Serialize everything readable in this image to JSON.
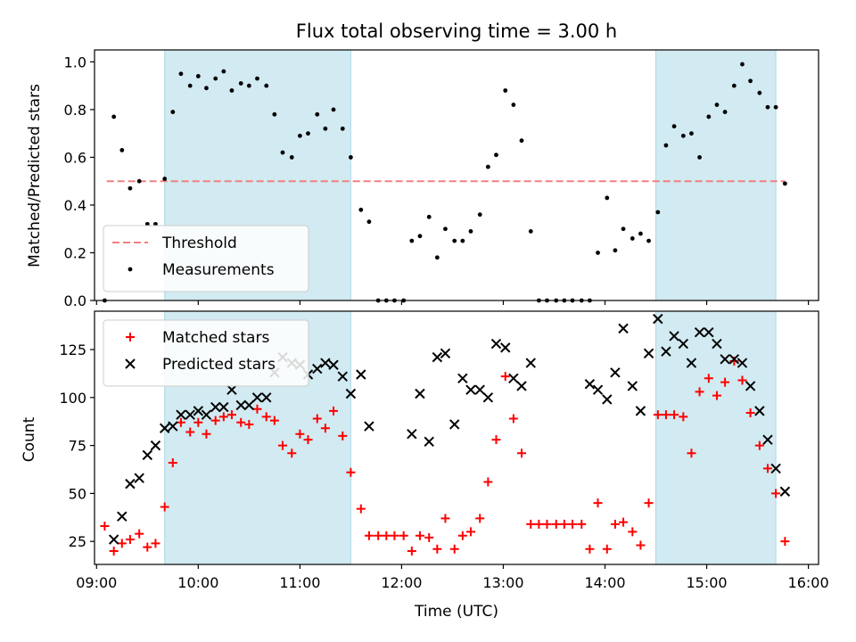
{
  "chart_data": {
    "title": "Flux total observing time = 3.00 h",
    "xlabel": "Time (UTC)",
    "xticks": [
      "09:00",
      "10:00",
      "11:00",
      "12:00",
      "13:00",
      "14:00",
      "15:00",
      "16:00"
    ],
    "xlim": [
      8.98,
      16.1
    ],
    "shaded_intervals": [
      [
        9.67,
        11.5
      ],
      [
        14.5,
        15.68
      ]
    ],
    "shade_color": "#add8e6",
    "panels": [
      {
        "type": "scatter",
        "ylabel": "Matched/Predicted stars",
        "ylim": [
          0,
          1.05
        ],
        "yticks": [
          "0.0",
          "0.2",
          "0.4",
          "0.6",
          "0.8",
          "1.0"
        ],
        "yticks_values": [
          0,
          0.2,
          0.4,
          0.6,
          0.8,
          1.0
        ],
        "legend": "lower-left",
        "threshold": {
          "name": "Threshold",
          "y": 0.5,
          "x_range": [
            9.1,
            15.77
          ],
          "color": "#f08080",
          "style": "dashed"
        },
        "series": [
          {
            "name": "Measurements",
            "marker": "dot",
            "color": "#000000",
            "x": [
              9.08,
              9.17,
              9.25,
              9.33,
              9.42,
              9.5,
              9.58,
              9.67,
              9.75,
              9.83,
              9.92,
              10.0,
              10.08,
              10.17,
              10.25,
              10.33,
              10.42,
              10.5,
              10.58,
              10.67,
              10.75,
              10.83,
              10.92,
              11.0,
              11.08,
              11.17,
              11.25,
              11.33,
              11.42,
              11.5,
              11.6,
              11.68,
              11.77,
              11.85,
              11.93,
              12.02,
              12.1,
              12.18,
              12.27,
              12.35,
              12.43,
              12.52,
              12.6,
              12.68,
              12.77,
              12.85,
              12.93,
              13.02,
              13.1,
              13.18,
              13.27,
              13.35,
              13.43,
              13.52,
              13.6,
              13.68,
              13.77,
              13.85,
              13.93,
              14.02,
              14.1,
              14.18,
              14.27,
              14.35,
              14.43,
              14.52,
              14.6,
              14.68,
              14.77,
              14.85,
              14.93,
              15.02,
              15.1,
              15.18,
              15.27,
              15.35,
              15.43,
              15.52,
              15.6,
              15.68,
              15.77
            ],
            "y": [
              0.0,
              0.77,
              0.63,
              0.47,
              0.5,
              0.32,
              0.32,
              0.51,
              0.79,
              0.95,
              0.9,
              0.94,
              0.89,
              0.93,
              0.96,
              0.88,
              0.91,
              0.9,
              0.93,
              0.9,
              0.78,
              0.62,
              0.6,
              0.69,
              0.7,
              0.78,
              0.72,
              0.8,
              0.72,
              0.6,
              0.38,
              0.33,
              0.0,
              0.0,
              0.0,
              0.0,
              0.25,
              0.27,
              0.35,
              0.18,
              0.3,
              0.25,
              0.25,
              0.29,
              0.36,
              0.56,
              0.61,
              0.88,
              0.82,
              0.67,
              0.29,
              0.0,
              0.0,
              0.0,
              0.0,
              0.0,
              0.0,
              0.0,
              0.2,
              0.43,
              0.21,
              0.3,
              0.26,
              0.28,
              0.25,
              0.37,
              0.65,
              0.73,
              0.69,
              0.7,
              0.6,
              0.77,
              0.82,
              0.79,
              0.9,
              0.99,
              0.92,
              0.87,
              0.81,
              0.81,
              0.49
            ]
          }
        ]
      },
      {
        "type": "scatter",
        "ylabel": "Count",
        "ylim": [
          13,
          145
        ],
        "yticks": [
          "25",
          "50",
          "75",
          "100",
          "125"
        ],
        "yticks_values": [
          25,
          50,
          75,
          100,
          125
        ],
        "legend": "upper-left",
        "series": [
          {
            "name": "Matched stars",
            "marker": "plus",
            "color": "#ff0000",
            "x": [
              9.08,
              9.17,
              9.25,
              9.33,
              9.42,
              9.5,
              9.58,
              9.67,
              9.75,
              9.83,
              9.92,
              10.0,
              10.08,
              10.17,
              10.25,
              10.33,
              10.42,
              10.5,
              10.58,
              10.67,
              10.75,
              10.83,
              10.92,
              11.0,
              11.08,
              11.17,
              11.25,
              11.33,
              11.42,
              11.5,
              11.6,
              11.68,
              11.77,
              11.85,
              11.93,
              12.02,
              12.1,
              12.18,
              12.27,
              12.35,
              12.43,
              12.52,
              12.6,
              12.68,
              12.77,
              12.85,
              12.93,
              13.02,
              13.1,
              13.18,
              13.27,
              13.35,
              13.43,
              13.52,
              13.6,
              13.68,
              13.77,
              13.85,
              13.93,
              14.02,
              14.1,
              14.18,
              14.27,
              14.35,
              14.43,
              14.52,
              14.6,
              14.68,
              14.77,
              14.85,
              14.93,
              15.02,
              15.1,
              15.18,
              15.27,
              15.35,
              15.43,
              15.52,
              15.6,
              15.68,
              15.77
            ],
            "y": [
              33,
              20,
              24,
              26,
              29,
              22,
              24,
              43,
              66,
              87,
              82,
              87,
              81,
              88,
              90,
              91,
              87,
              86,
              94,
              90,
              88,
              75,
              71,
              81,
              78,
              89,
              84,
              93,
              80,
              61,
              42,
              28,
              28,
              28,
              28,
              28,
              20,
              28,
              27,
              21,
              37,
              21,
              28,
              30,
              37,
              56,
              78,
              111,
              89,
              71,
              34,
              34,
              34,
              34,
              34,
              34,
              34,
              21,
              45,
              21,
              34,
              35,
              30,
              23,
              45,
              91,
              91,
              91,
              90,
              71,
              103,
              110,
              101,
              108,
              119,
              109,
              92,
              75,
              63,
              50,
              25
            ]
          },
          {
            "name": "Predicted stars",
            "marker": "x",
            "color": "#000000",
            "x": [
              9.17,
              9.25,
              9.33,
              9.42,
              9.5,
              9.58,
              9.67,
              9.75,
              9.83,
              9.92,
              10.0,
              10.08,
              10.17,
              10.25,
              10.33,
              10.42,
              10.5,
              10.58,
              10.67,
              10.75,
              10.83,
              10.92,
              11.0,
              11.08,
              11.17,
              11.25,
              11.33,
              11.42,
              11.5,
              11.6,
              11.68,
              12.1,
              12.18,
              12.27,
              12.35,
              12.43,
              12.52,
              12.6,
              12.68,
              12.77,
              12.85,
              12.93,
              13.02,
              13.1,
              13.18,
              13.27,
              13.85,
              13.93,
              14.02,
              14.1,
              14.18,
              14.27,
              14.35,
              14.43,
              14.52,
              14.6,
              14.68,
              14.77,
              14.85,
              14.93,
              15.02,
              15.1,
              15.18,
              15.27,
              15.35,
              15.43,
              15.52,
              15.6,
              15.68,
              15.77
            ],
            "y": [
              26,
              38,
              55,
              58,
              70,
              75,
              84,
              85,
              91,
              91,
              93,
              91,
              95,
              95,
              104,
              96,
              96,
              100,
              100,
              113,
              121,
              118,
              117,
              112,
              115,
              118,
              117,
              111,
              102,
              112,
              85,
              81,
              102,
              77,
              121,
              123,
              86,
              110,
              104,
              104,
              100,
              128,
              126,
              110,
              106,
              118,
              107,
              104,
              99,
              113,
              136,
              106,
              93,
              123,
              141,
              124,
              132,
              128,
              118,
              134,
              134,
              128,
              120,
              120,
              118,
              106,
              93,
              78,
              63,
              51
            ]
          }
        ]
      }
    ]
  }
}
